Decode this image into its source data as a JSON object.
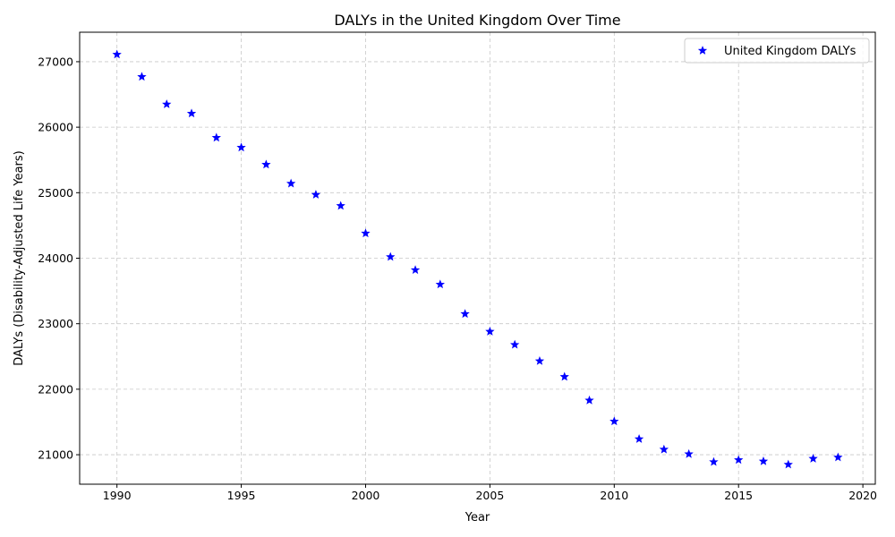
{
  "chart_data": {
    "type": "scatter",
    "title": "DALYs in the United Kingdom Over Time",
    "xlabel": "Year",
    "ylabel": "DALYs (Disability-Adjusted Life Years)",
    "xlim": [
      1988.5,
      2020.5
    ],
    "ylim": [
      20550,
      27450
    ],
    "xticks": [
      1990,
      1995,
      2000,
      2005,
      2010,
      2015,
      2020
    ],
    "yticks": [
      21000,
      22000,
      23000,
      24000,
      25000,
      26000,
      27000
    ],
    "grid": true,
    "legend_position": "top-right",
    "marker": "star",
    "series": [
      {
        "name": "United Kingdom DALYs",
        "color": "#0000ff",
        "x": [
          1990,
          1991,
          1992,
          1993,
          1994,
          1995,
          1996,
          1997,
          1998,
          1999,
          2000,
          2001,
          2002,
          2003,
          2004,
          2005,
          2006,
          2007,
          2008,
          2009,
          2010,
          2011,
          2012,
          2013,
          2014,
          2015,
          2016,
          2017,
          2018,
          2019
        ],
        "y": [
          27110,
          26770,
          26350,
          26210,
          25840,
          25690,
          25430,
          25140,
          24970,
          24800,
          24380,
          24020,
          23820,
          23600,
          23150,
          22880,
          22680,
          22430,
          22190,
          21830,
          21510,
          21240,
          21080,
          21010,
          20890,
          20920,
          20900,
          20850,
          20940,
          20960
        ]
      }
    ]
  }
}
